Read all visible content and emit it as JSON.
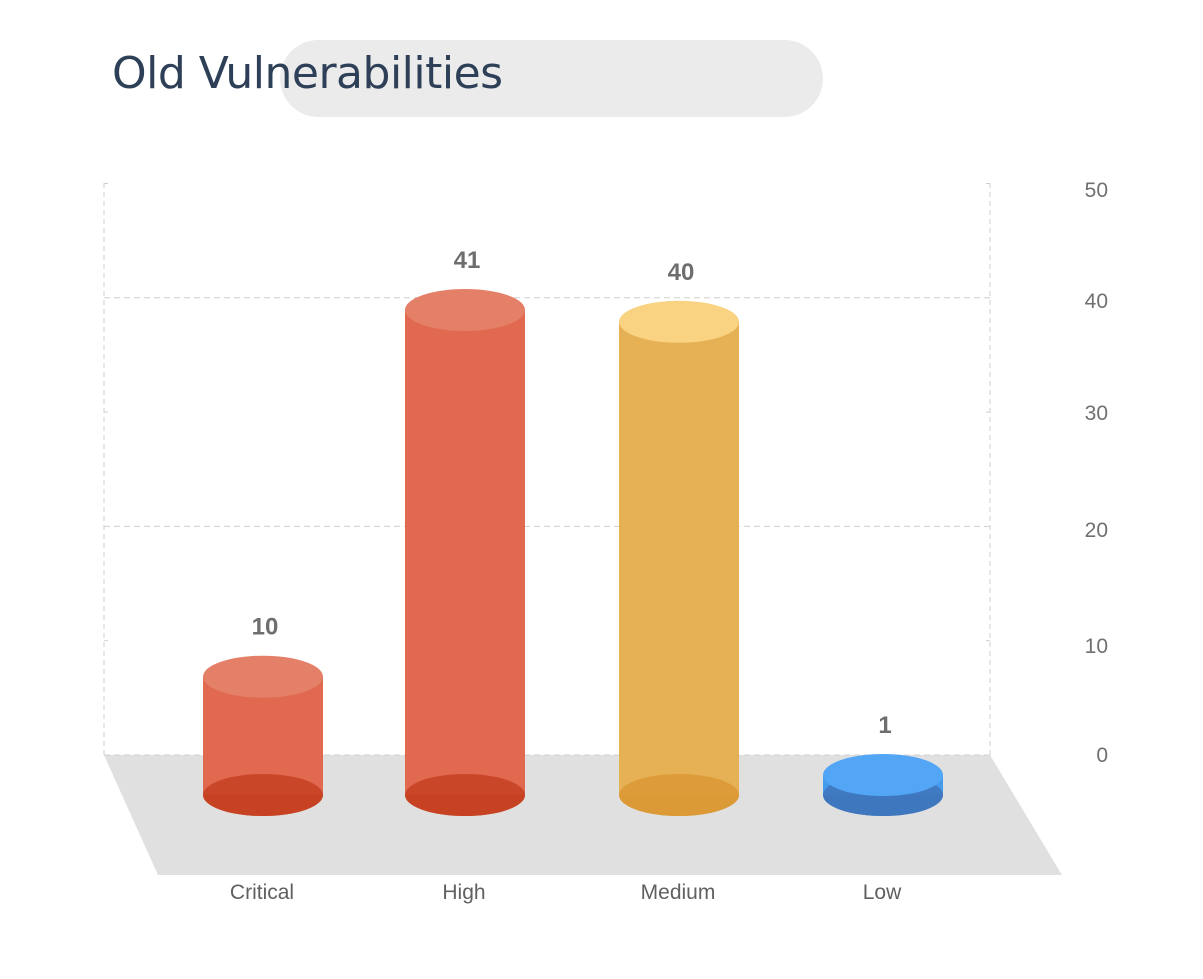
{
  "header": {
    "title": "Old Vulnerabilities"
  },
  "chart_data": {
    "type": "bar",
    "style": "3d-cylinder",
    "title": "Old Vulnerabilities",
    "categories": [
      "Critical",
      "High",
      "Medium",
      "Low"
    ],
    "values": [
      10,
      41,
      40,
      1
    ],
    "data_labels": [
      "10",
      "41",
      "40",
      "1"
    ],
    "colors": [
      {
        "side": "#e0694f",
        "top": "#e47f68",
        "bottom": "#c64224"
      },
      {
        "side": "#e0694f",
        "top": "#e47f68",
        "bottom": "#c64224"
      },
      {
        "side": "#e6b155",
        "top": "#f9d282",
        "bottom": "#dc9a36"
      },
      {
        "side": "#449bec",
        "top": "#53a6f5",
        "bottom": "#3f77bf"
      }
    ],
    "yaxis": {
      "ticks": [
        0,
        10,
        20,
        30,
        40,
        50
      ],
      "tick_labels": [
        "0",
        "10",
        "20",
        "30",
        "40",
        "50"
      ],
      "position": "right"
    },
    "ylim": [
      0,
      50
    ],
    "xlabel": "",
    "ylabel": "",
    "grid": true,
    "floor_color": "#e0e0e0",
    "grid_color": "#cfcfcf"
  }
}
